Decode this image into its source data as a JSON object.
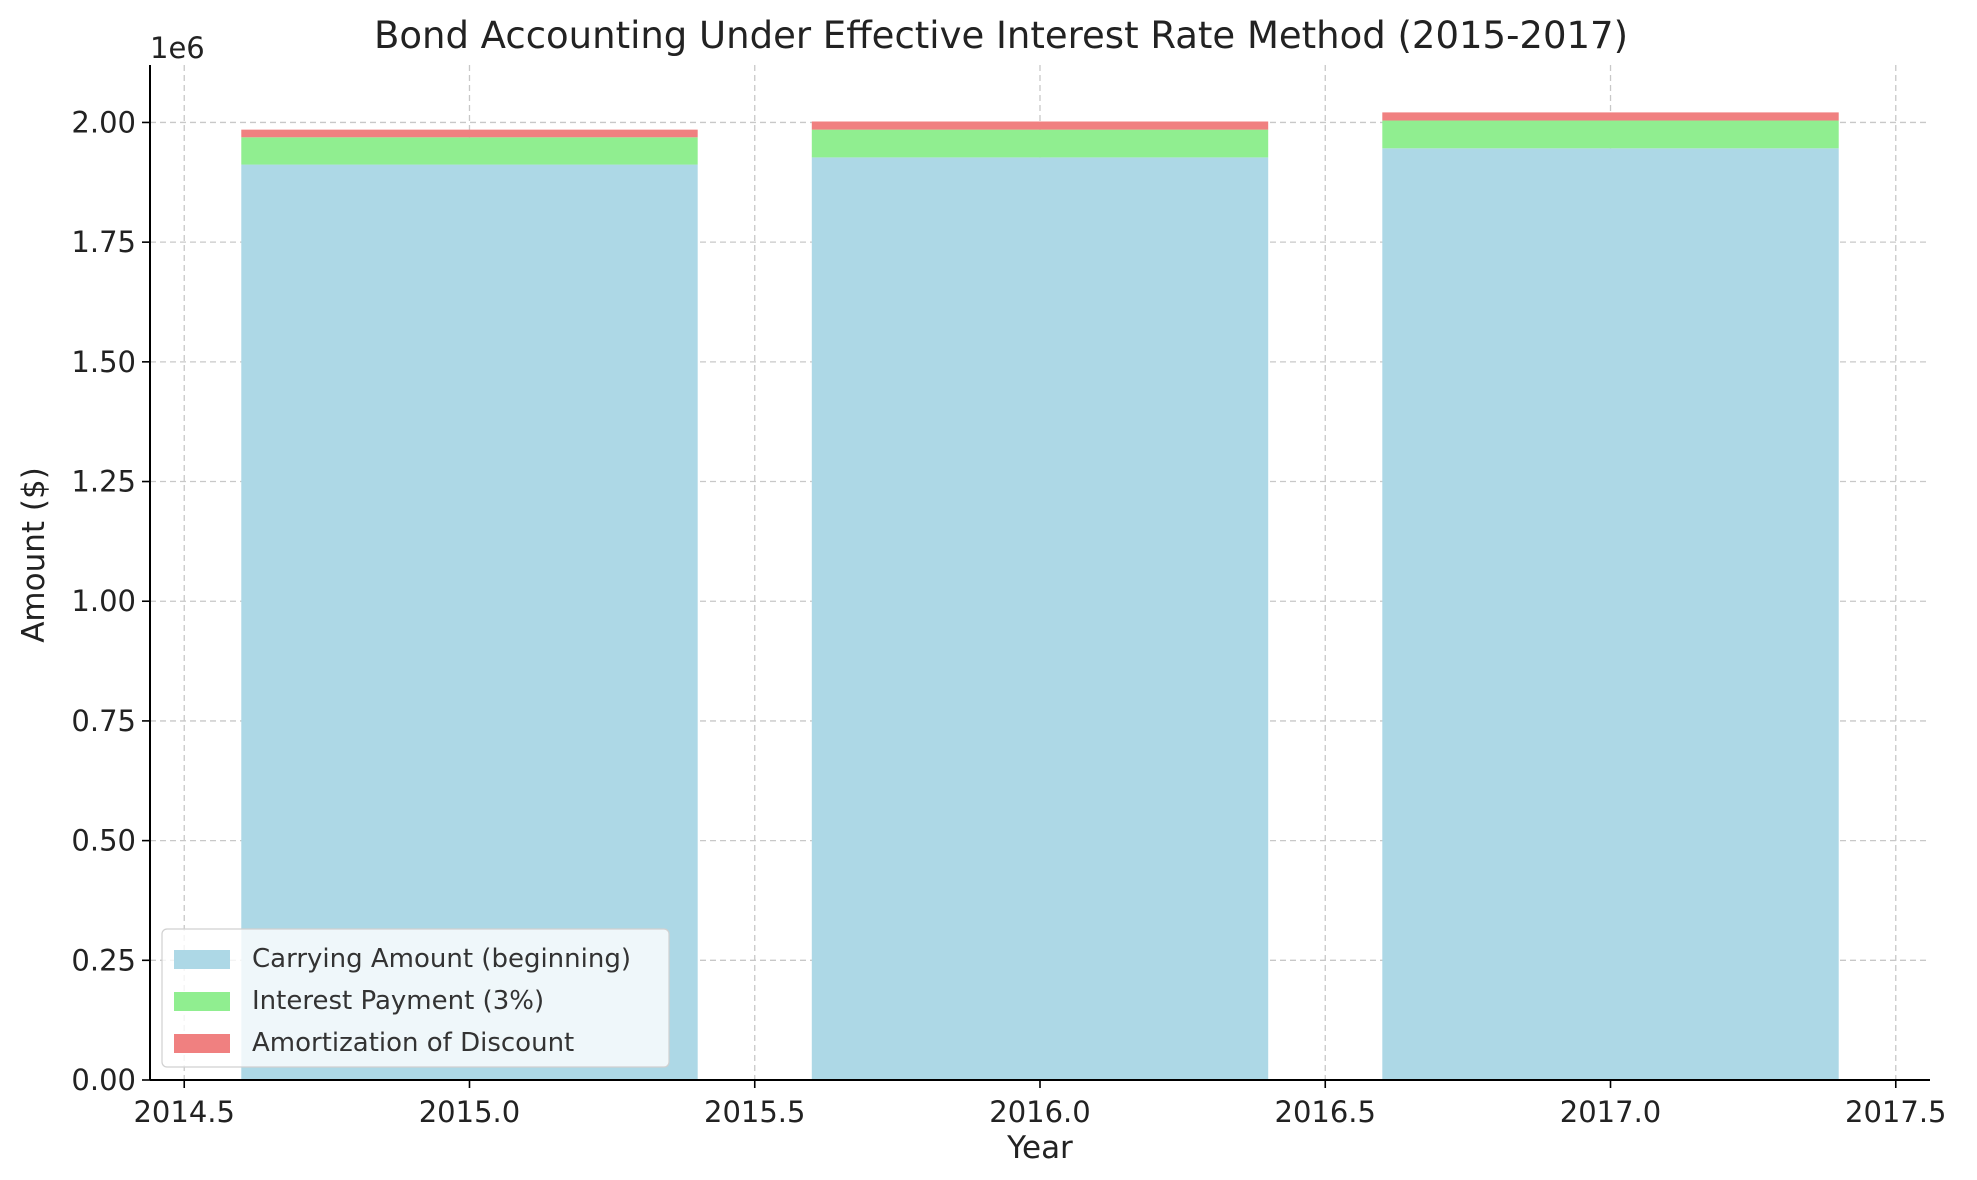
{
  "chart_data": {
    "type": "bar",
    "stacked": true,
    "title": "Bond Accounting Under Effective Interest Rate Method (2015-2017)",
    "xlabel": "Year",
    "ylabel": "Amount ($)",
    "y_offset_label": "1e6",
    "x": [
      2015,
      2016,
      2017
    ],
    "bar_width": 0.8,
    "xlim": [
      2014.44,
      2017.56
    ],
    "ylim": [
      0,
      2.12
    ],
    "x_ticks": [
      2014.5,
      2015.0,
      2015.5,
      2016.0,
      2016.5,
      2017.0,
      2017.5
    ],
    "x_tick_labels": [
      "2014.5",
      "2015.0",
      "2015.5",
      "2016.0",
      "2016.5",
      "2017.0",
      "2017.5"
    ],
    "y_ticks": [
      0,
      0.25,
      0.5,
      0.75,
      1.0,
      1.25,
      1.5,
      1.75,
      2.0
    ],
    "y_tick_labels": [
      "0.00",
      "0.25",
      "0.50",
      "0.75",
      "1.00",
      "1.25",
      "1.50",
      "1.75",
      "2.00"
    ],
    "grid": true,
    "legend_position": "lower-left",
    "series": [
      {
        "name": "Carrying Amount (beginning)",
        "color": "#add8e6",
        "values": [
          1.912,
          1.927,
          1.946
        ]
      },
      {
        "name": "Interest Payment (3%)",
        "color": "#90ee90",
        "values": [
          0.057,
          0.058,
          0.058
        ]
      },
      {
        "name": "Amortization of Discount",
        "color": "#f08080",
        "values": [
          0.016,
          0.017,
          0.017
        ]
      }
    ]
  }
}
